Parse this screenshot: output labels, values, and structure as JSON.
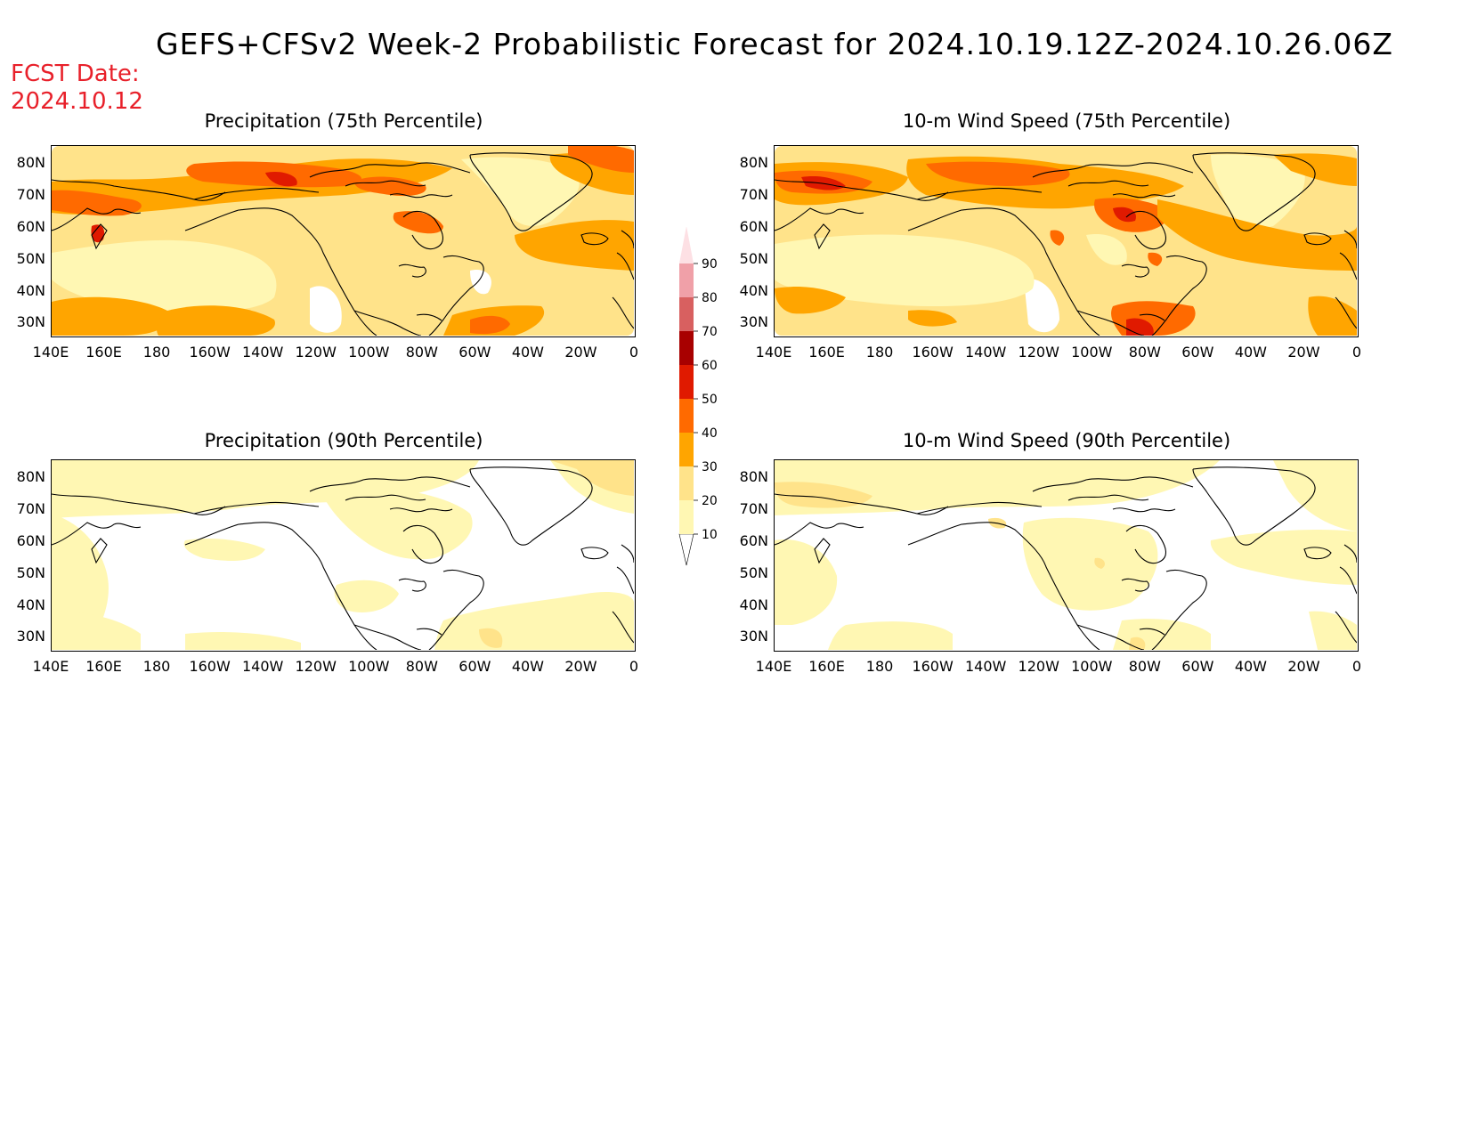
{
  "title": "GEFS+CFSv2 Week-2 Probabilistic Forecast for 2024.10.19.12Z-2024.10.26.06Z",
  "fcst_date_label": "FCST Date:",
  "fcst_date_value": "2024.10.12",
  "lat_labels": [
    "80N",
    "70N",
    "60N",
    "50N",
    "40N",
    "30N"
  ],
  "lon_labels": [
    "140E",
    "160E",
    "180",
    "160W",
    "140W",
    "120W",
    "100W",
    "80W",
    "60W",
    "40W",
    "20W",
    "0"
  ],
  "panels": [
    {
      "id": "precip75",
      "title": "Precipitation (75th Percentile)"
    },
    {
      "id": "wind75",
      "title": "10-m Wind Speed (75th Percentile)"
    },
    {
      "id": "precip90",
      "title": "Precipitation (90th Percentile)"
    },
    {
      "id": "wind90",
      "title": "10-m Wind Speed (90th Percentile)"
    }
  ],
  "colorbar": {
    "labels": [
      "90",
      "80",
      "70",
      "60",
      "50",
      "40",
      "30",
      "20",
      "10"
    ],
    "colors": {
      "10": "#fff7b3",
      "20": "#ffe38a",
      "30": "#ffa500",
      "40": "#ff6a00",
      "50": "#e01a00",
      "60": "#a80000",
      "70": "#d86060",
      "80": "#f0a0a8",
      "90": "#fde0e4"
    }
  },
  "colors": {
    "fcst_date": "#e8202a",
    "coast": "#000000"
  }
}
